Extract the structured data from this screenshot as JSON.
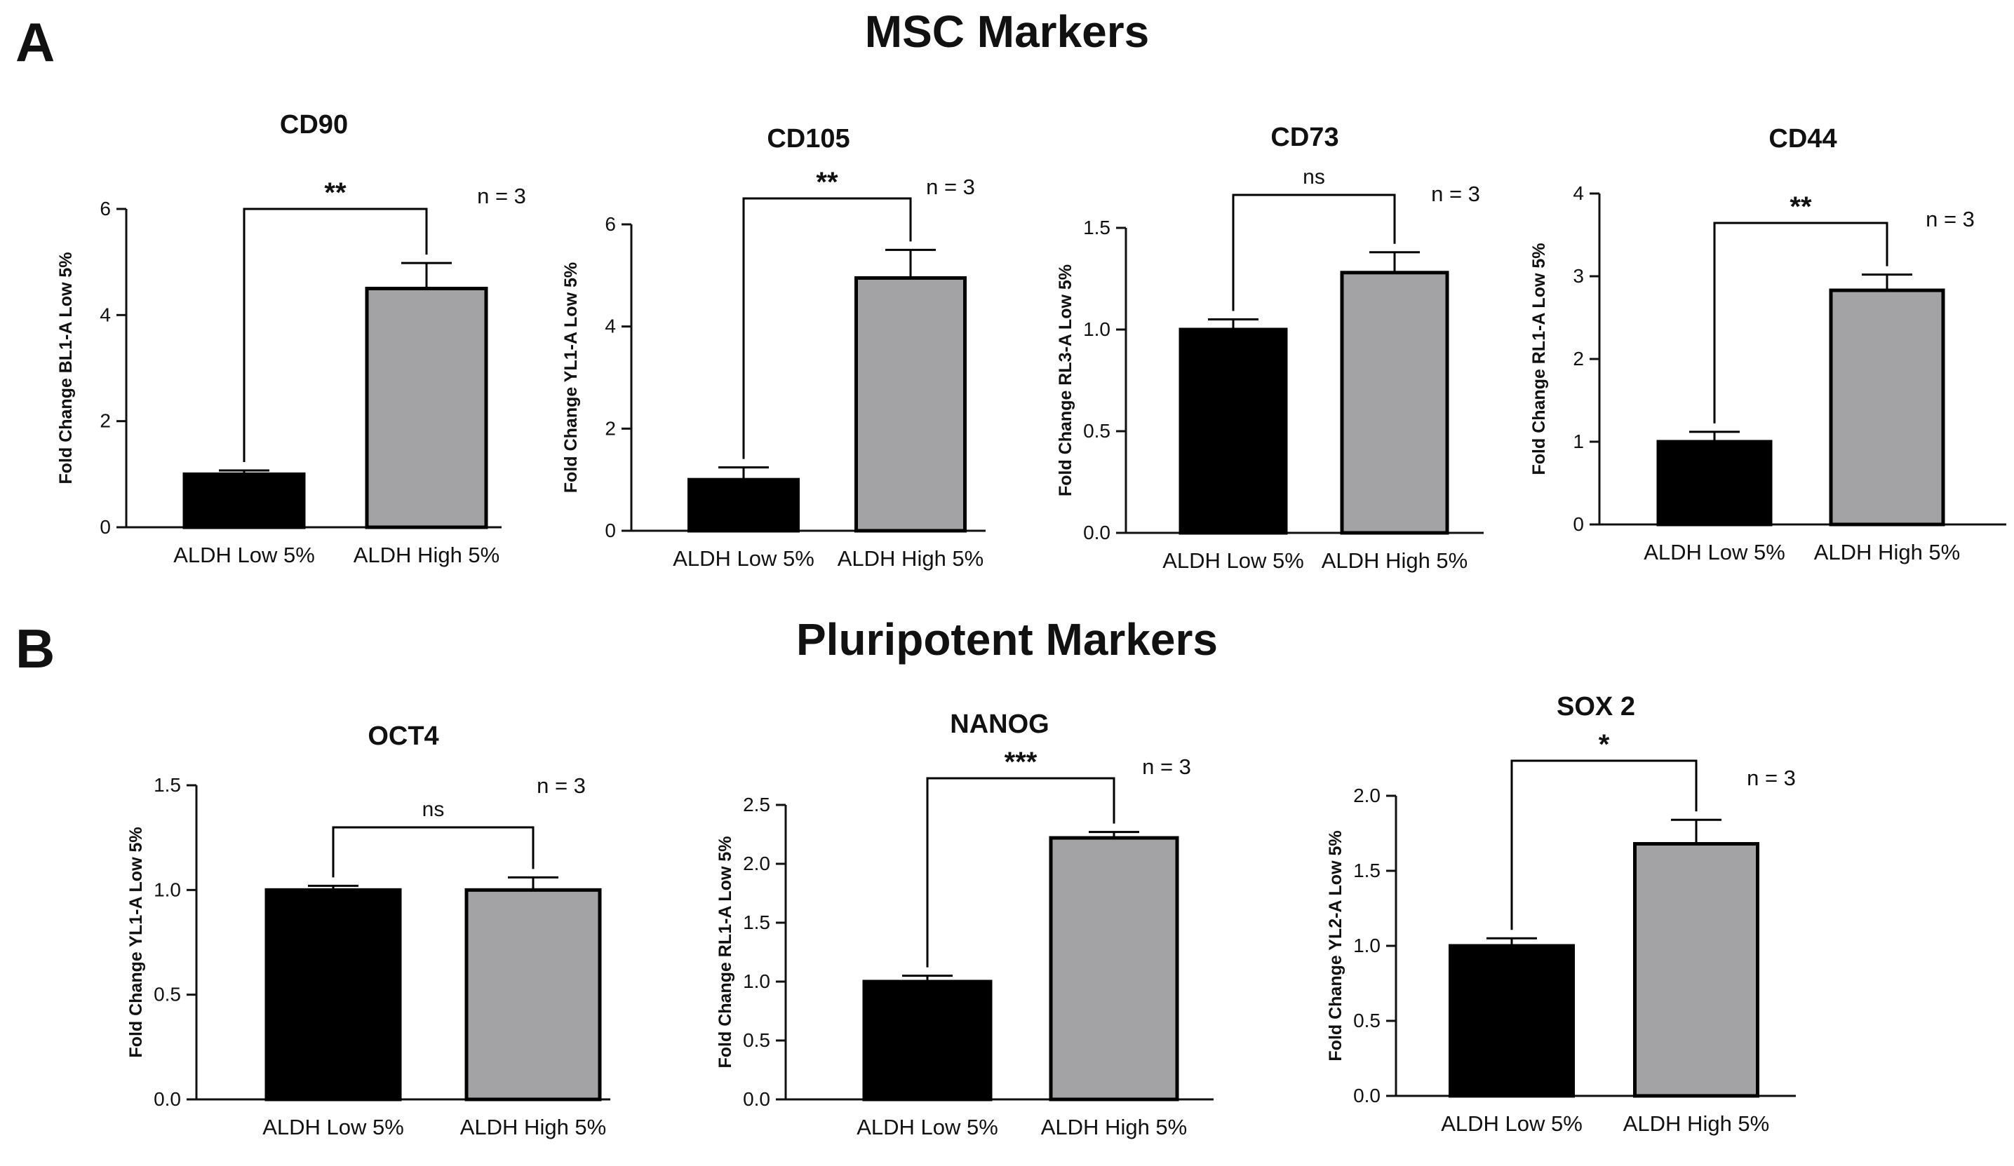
{
  "panels": {
    "a": {
      "letter": "A",
      "title": "MSC Markers"
    },
    "b": {
      "letter": "B",
      "title": "Pluripotent Markers"
    }
  },
  "colors": {
    "low_bar": "#000000",
    "high_bar": "#a3a3a6",
    "axis": "#111111"
  },
  "chart_data": [
    {
      "type": "bar",
      "title": "CD90",
      "ylabel": "Fold Change BL1-A Low 5%",
      "categories": [
        "ALDH Low 5%",
        "ALDH High 5%"
      ],
      "values": [
        1.0,
        4.5
      ],
      "errors": [
        0.07,
        0.48
      ],
      "ylim": [
        0,
        6
      ],
      "yticks": [
        "0",
        "2",
        "4",
        "6"
      ],
      "significance": "**",
      "n_label": "n = 3"
    },
    {
      "type": "bar",
      "title": "CD105",
      "ylabel": "Fold Change YL1-A Low 5%",
      "categories": [
        "ALDH Low 5%",
        "ALDH High 5%"
      ],
      "values": [
        1.0,
        4.95
      ],
      "errors": [
        0.24,
        0.55
      ],
      "ylim": [
        0,
        6
      ],
      "yticks": [
        "0",
        "2",
        "4",
        "6"
      ],
      "significance": "**",
      "n_label": "n = 3"
    },
    {
      "type": "bar",
      "title": "CD73",
      "ylabel": "Fold Change RL3-A Low 5%",
      "categories": [
        "ALDH Low 5%",
        "ALDH High 5%"
      ],
      "values": [
        1.0,
        1.28
      ],
      "errors": [
        0.05,
        0.1
      ],
      "ylim": [
        0,
        1.5
      ],
      "yticks": [
        "0.0",
        "0.5",
        "1.0",
        "1.5"
      ],
      "significance": "ns",
      "n_label": "n = 3"
    },
    {
      "type": "bar",
      "title": "CD44",
      "ylabel": "Fold Change RL1-A Low 5%",
      "categories": [
        "ALDH Low 5%",
        "ALDH High 5%"
      ],
      "values": [
        1.0,
        2.83
      ],
      "errors": [
        0.12,
        0.19
      ],
      "ylim": [
        0,
        4
      ],
      "yticks": [
        "0",
        "1",
        "2",
        "3",
        "4"
      ],
      "significance": "**",
      "n_label": "n = 3"
    },
    {
      "type": "bar",
      "title": "OCT4",
      "ylabel": "Fold Change YL1-A Low 5%",
      "categories": [
        "ALDH Low 5%",
        "ALDH High 5%"
      ],
      "values": [
        1.0,
        1.0
      ],
      "errors": [
        0.02,
        0.06
      ],
      "ylim": [
        0,
        1.5
      ],
      "yticks": [
        "0.0",
        "0.5",
        "1.0",
        "1.5"
      ],
      "significance": "ns",
      "n_label": "n = 3"
    },
    {
      "type": "bar",
      "title": "NANOG",
      "ylabel": "Fold Change RL1-A Low 5%",
      "categories": [
        "ALDH Low 5%",
        "ALDH High 5%"
      ],
      "values": [
        1.0,
        2.22
      ],
      "errors": [
        0.05,
        0.05
      ],
      "ylim": [
        0,
        2.5
      ],
      "yticks": [
        "0.0",
        "0.5",
        "1.0",
        "1.5",
        "2.0",
        "2.5"
      ],
      "significance": "***",
      "n_label": "n = 3"
    },
    {
      "type": "bar",
      "title": "SOX 2",
      "ylabel": "Fold Change YL2-A Low 5%",
      "categories": [
        "ALDH Low 5%",
        "ALDH High 5%"
      ],
      "values": [
        1.0,
        1.68
      ],
      "errors": [
        0.05,
        0.16
      ],
      "ylim": [
        0,
        2.0
      ],
      "yticks": [
        "0.0",
        "0.5",
        "1.0",
        "1.5",
        "2.0"
      ],
      "significance": "*",
      "n_label": "n = 3"
    }
  ]
}
